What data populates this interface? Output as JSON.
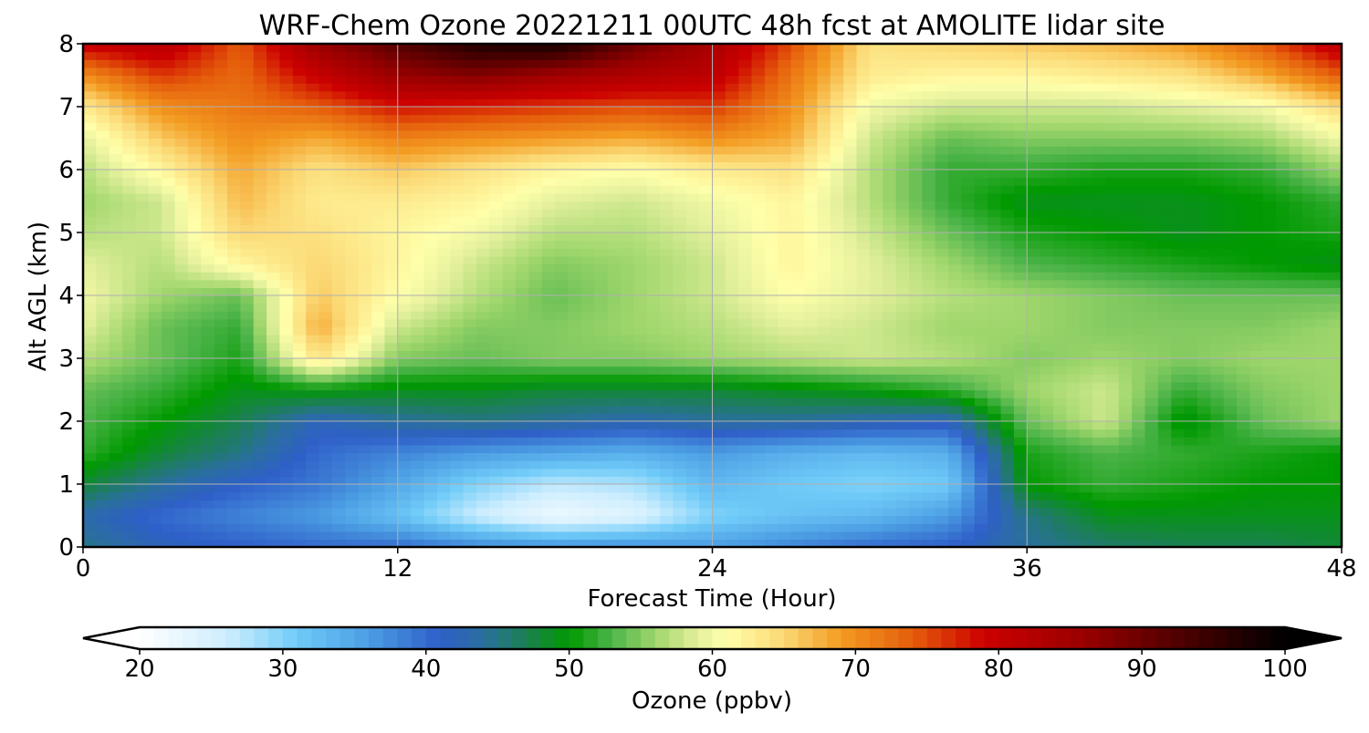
{
  "chart_data": {
    "type": "heatmap",
    "title": "WRF-Chem Ozone  20221211 00UTC 48h fcst at AMOLITE lidar site",
    "xlabel": "Forecast Time (Hour)",
    "ylabel": "Alt AGL (km)",
    "xlim": [
      0,
      48
    ],
    "ylim": [
      0,
      8
    ],
    "x_ticks": [
      0,
      12,
      24,
      36,
      48
    ],
    "y_ticks": [
      0,
      1,
      2,
      3,
      4,
      5,
      6,
      7,
      8
    ],
    "grid": true,
    "x": [
      0,
      3,
      6,
      9,
      12,
      15,
      18,
      21,
      24,
      27,
      30,
      33,
      36,
      39,
      42,
      45,
      48
    ],
    "y": [
      0,
      0.5,
      1,
      1.5,
      2,
      2.5,
      3,
      3.5,
      4,
      4.5,
      5,
      5.5,
      6,
      6.5,
      7,
      7.5,
      8
    ],
    "z": [
      [
        45,
        42,
        41,
        40,
        40,
        38,
        37,
        37,
        36,
        38,
        40,
        41,
        44,
        46,
        47,
        47,
        48
      ],
      [
        43,
        40,
        38,
        36,
        32,
        26,
        22,
        24,
        30,
        32,
        33,
        36,
        45,
        49,
        49,
        49,
        49
      ],
      [
        48,
        44,
        41,
        39,
        35,
        30,
        27,
        28,
        33,
        31,
        30,
        31,
        50,
        52,
        51,
        50,
        50
      ],
      [
        52,
        48,
        45,
        40,
        38,
        36,
        35,
        34,
        36,
        34,
        33,
        34,
        51,
        53,
        52,
        51,
        50
      ],
      [
        53,
        50,
        47,
        42,
        44,
        45,
        44,
        43,
        44,
        44,
        43,
        42,
        54,
        58,
        49,
        54,
        56
      ],
      [
        54,
        52,
        49,
        50,
        49,
        49,
        48,
        48,
        48,
        49,
        50,
        52,
        56,
        58,
        52,
        55,
        56
      ],
      [
        57,
        54,
        51,
        64,
        55,
        54,
        55,
        55,
        56,
        57,
        58,
        57,
        55,
        56,
        55,
        56,
        56
      ],
      [
        59,
        54,
        52,
        68,
        58,
        55,
        55,
        56,
        57,
        59,
        58,
        56,
        56,
        55,
        55,
        55,
        56
      ],
      [
        60,
        56,
        54,
        66,
        61,
        57,
        54,
        56,
        58,
        61,
        59,
        57,
        56,
        55,
        54,
        54,
        54
      ],
      [
        59,
        57,
        62,
        65,
        62,
        58,
        55,
        56,
        58,
        62,
        59,
        56,
        53,
        52,
        51,
        50,
        49
      ],
      [
        57,
        58,
        65,
        64,
        62,
        60,
        57,
        57,
        59,
        62,
        58,
        54,
        51,
        50,
        49,
        50,
        51
      ],
      [
        56,
        58,
        67,
        63,
        63,
        62,
        59,
        58,
        60,
        62,
        57,
        52,
        49,
        49,
        49,
        50,
        52
      ],
      [
        57,
        62,
        68,
        64,
        66,
        64,
        62,
        61,
        63,
        64,
        57,
        52,
        52,
        51,
        51,
        52,
        56
      ],
      [
        59,
        66,
        70,
        68,
        71,
        70,
        69,
        68,
        70,
        68,
        58,
        54,
        55,
        55,
        55,
        56,
        60
      ],
      [
        63,
        70,
        72,
        74,
        78,
        77,
        76,
        75,
        76,
        70,
        60,
        58,
        58,
        58,
        59,
        60,
        65
      ],
      [
        70,
        76,
        73,
        80,
        86,
        88,
        85,
        83,
        81,
        72,
        63,
        62,
        62,
        63,
        64,
        68,
        74
      ],
      [
        80,
        82,
        74,
        86,
        92,
        97,
        98,
        90,
        84,
        75,
        64,
        65,
        66,
        67,
        69,
        74,
        82
      ]
    ],
    "colorbar": {
      "label": "Ozone  (ppbv)",
      "vmin": 20,
      "vmax": 100,
      "ticks": [
        20,
        30,
        40,
        50,
        60,
        70,
        80,
        90,
        100
      ],
      "extend": "both",
      "colors": [
        {
          "v": 20,
          "c": "#ffffff"
        },
        {
          "v": 26,
          "c": "#cfeefe"
        },
        {
          "v": 31,
          "c": "#6fcbf8"
        },
        {
          "v": 36,
          "c": "#4b9de3"
        },
        {
          "v": 41,
          "c": "#2f5fc8"
        },
        {
          "v": 44,
          "c": "#2a6f9e"
        },
        {
          "v": 47,
          "c": "#1b8052"
        },
        {
          "v": 50,
          "c": "#009900"
        },
        {
          "v": 53,
          "c": "#4db44a"
        },
        {
          "v": 56,
          "c": "#9fd66c"
        },
        {
          "v": 59,
          "c": "#e4f09c"
        },
        {
          "v": 61,
          "c": "#ffffaa"
        },
        {
          "v": 65,
          "c": "#fbd874"
        },
        {
          "v": 69,
          "c": "#f39b21"
        },
        {
          "v": 74,
          "c": "#e55d0b"
        },
        {
          "v": 79,
          "c": "#cc0000"
        },
        {
          "v": 86,
          "c": "#990000"
        },
        {
          "v": 93,
          "c": "#4a0000"
        },
        {
          "v": 100,
          "c": "#000000"
        }
      ]
    }
  }
}
